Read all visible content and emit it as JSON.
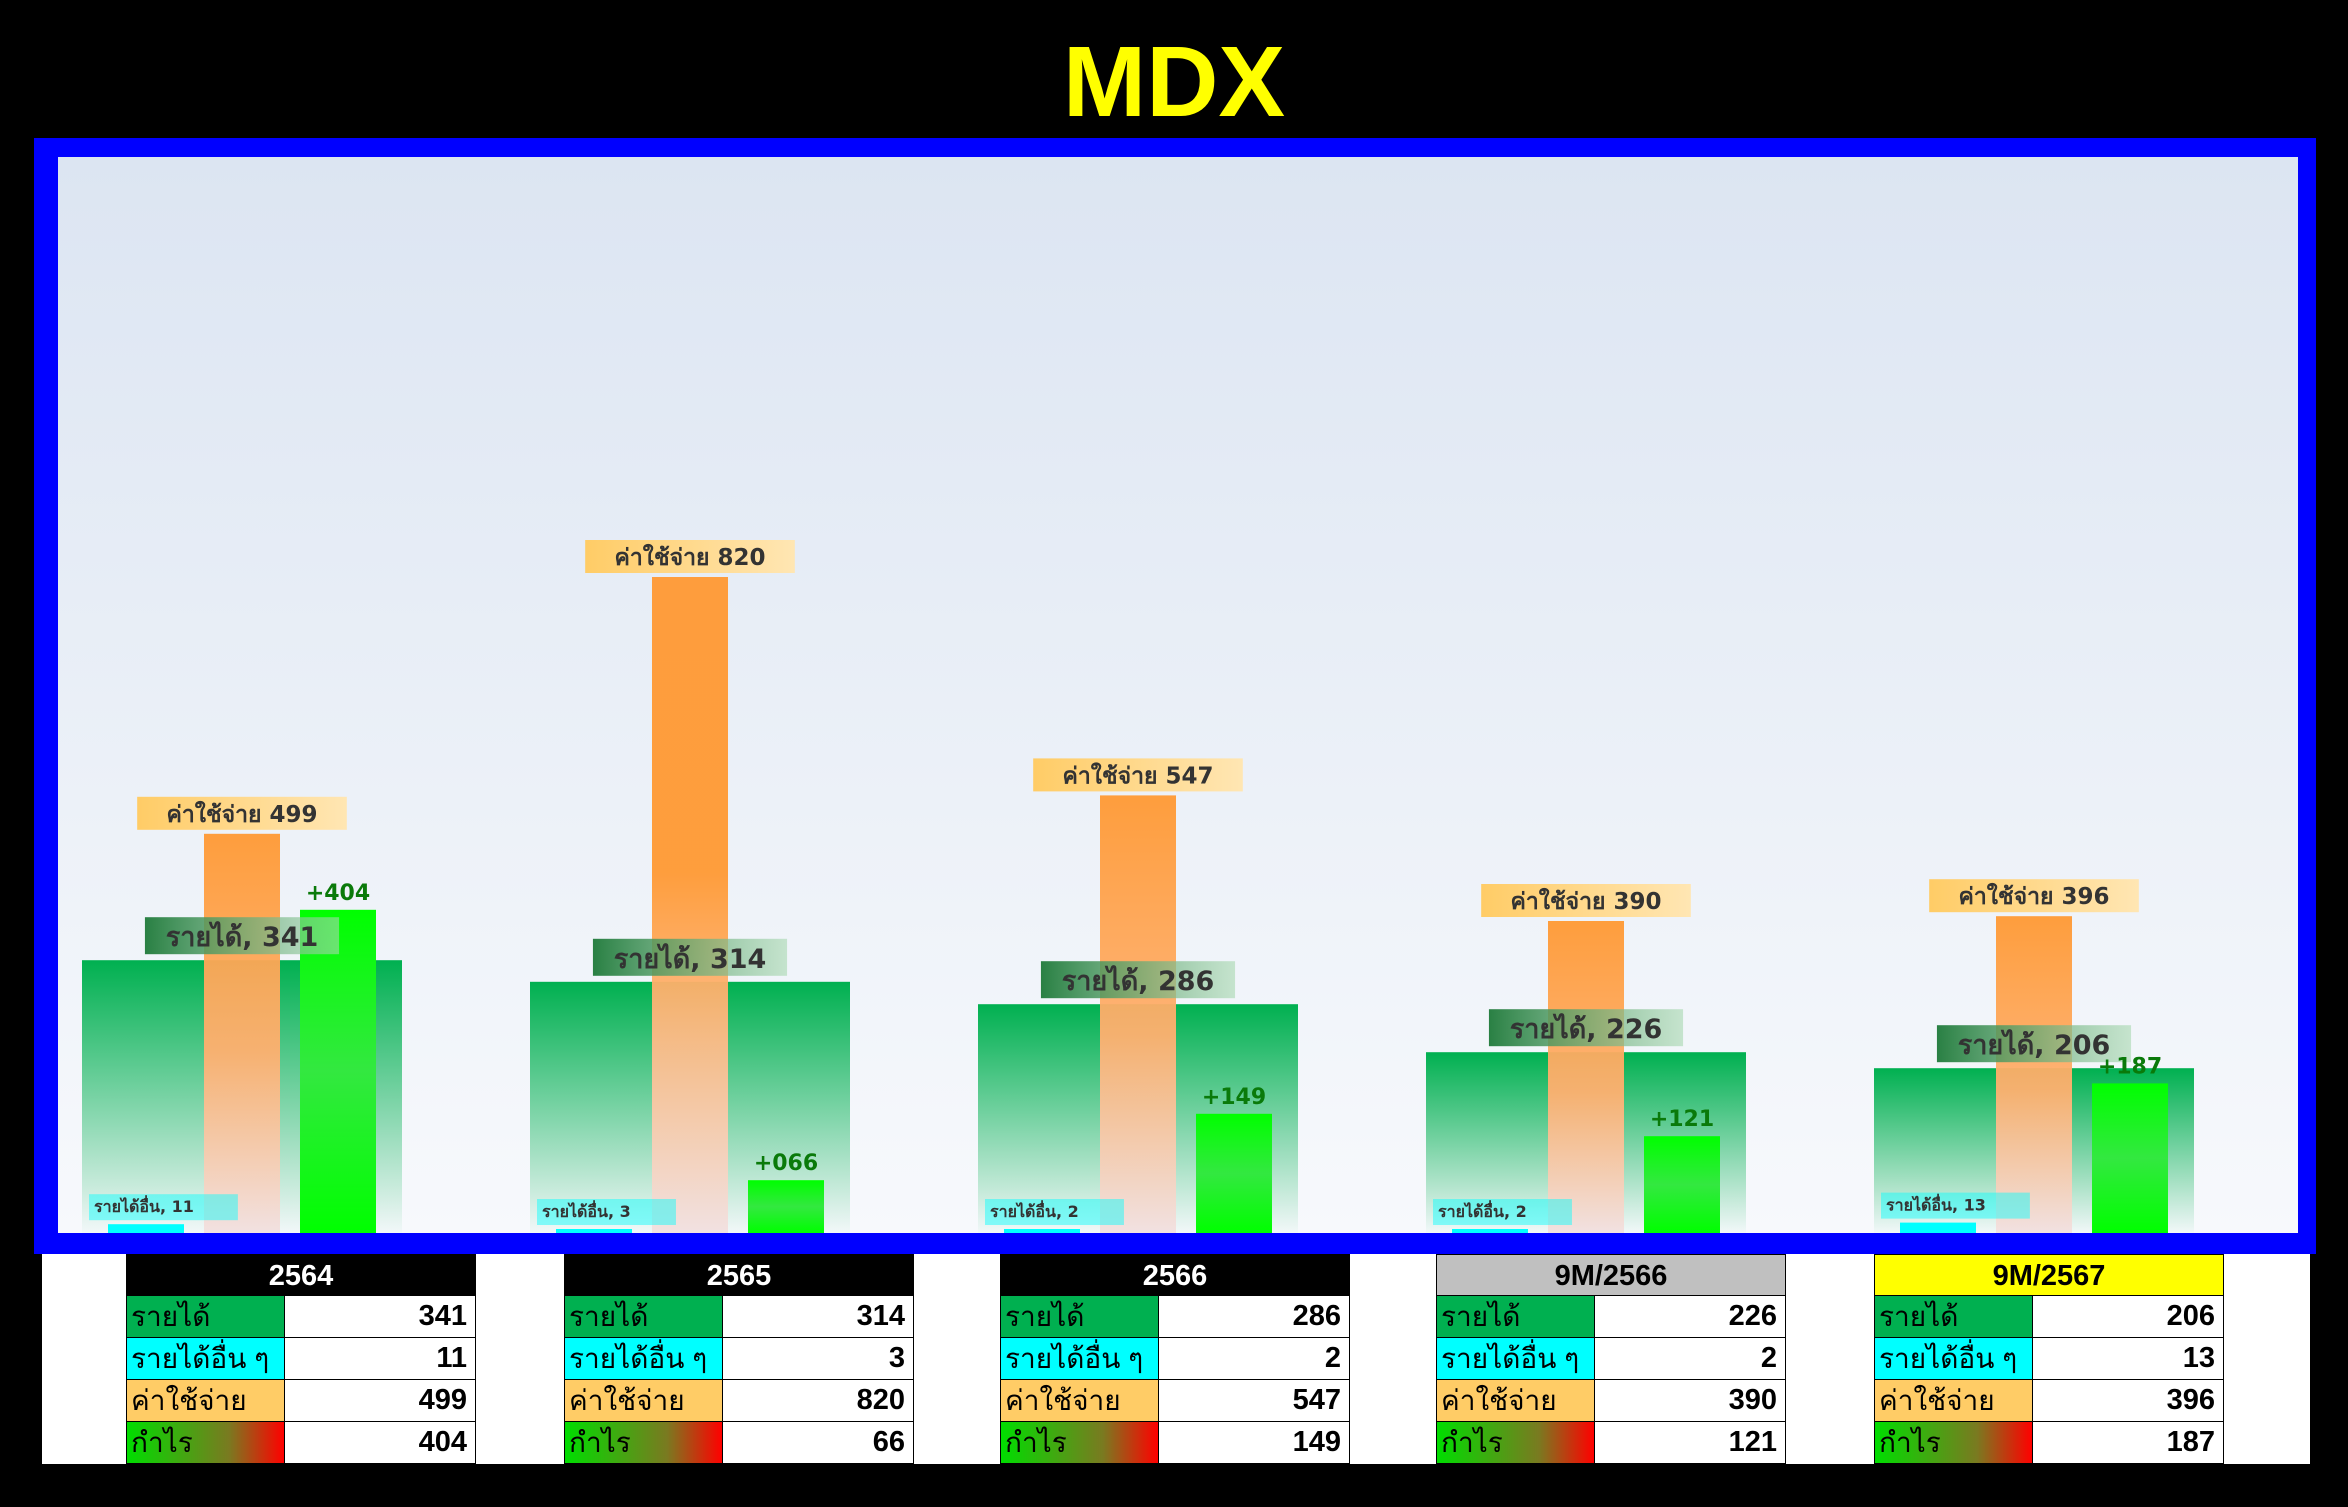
{
  "title": "MDX",
  "colors": {
    "title": "#ffff00",
    "frame": "#0000ff",
    "revenue": "#00b050",
    "other_income": "#00ffff",
    "expense": "#ffcc66",
    "expense_bar": "#ff9933",
    "profit": "#00ff00",
    "profit_label": "#0a7a0a",
    "year_header_dark": "#000000",
    "year_header_gray": "#c0c0c0",
    "year_header_yellow": "#ffff00"
  },
  "chart_data": {
    "type": "bar",
    "categories": [
      "2564",
      "2565",
      "2566",
      "9M/2566",
      "9M/2567"
    ],
    "series": [
      {
        "name": "รายได้",
        "values": [
          341,
          314,
          286,
          226,
          206
        ]
      },
      {
        "name": "รายได้อื่น",
        "values": [
          11,
          3,
          2,
          2,
          13
        ]
      },
      {
        "name": "ค่าใช้จ่าย",
        "values": [
          499,
          820,
          547,
          390,
          396
        ]
      },
      {
        "name": "กำไร",
        "values": [
          404,
          66,
          149,
          121,
          187
        ]
      }
    ],
    "data_labels": {
      "revenue": [
        "รายได้, 341",
        "รายได้, 314",
        "รายได้, 286",
        "รายได้, 226",
        "รายได้, 206"
      ],
      "other_income": [
        "รายได้อื่น, 11",
        "รายได้อื่น, 3",
        "รายได้อื่น, 2",
        "รายได้อื่น, 2",
        "รายได้อื่น, 13"
      ],
      "expense": [
        "ค่าใช้จ่าย 499",
        "ค่าใช้จ่าย 820",
        "ค่าใช้จ่าย 547",
        "ค่าใช้จ่าย 390",
        "ค่าใช้จ่าย 396"
      ],
      "profit": [
        "+404",
        "+066",
        "+149",
        "+121",
        "+187"
      ]
    },
    "ylim": [
      0,
      940
    ],
    "grid": false,
    "legend": "none"
  },
  "tables": [
    {
      "year": "2564",
      "header_style": "dark",
      "rows": [
        {
          "label": "รายได้",
          "value": "341",
          "kind": "revenue"
        },
        {
          "label": "รายได้อื่น ๆ",
          "value": "11",
          "kind": "other"
        },
        {
          "label": "ค่าใช้จ่าย",
          "value": "499",
          "kind": "expense"
        },
        {
          "label": "กำไร",
          "value": "404",
          "kind": "profit"
        }
      ]
    },
    {
      "year": "2565",
      "header_style": "dark",
      "rows": [
        {
          "label": "รายได้",
          "value": "314",
          "kind": "revenue"
        },
        {
          "label": "รายได้อื่น ๆ",
          "value": "3",
          "kind": "other"
        },
        {
          "label": "ค่าใช้จ่าย",
          "value": "820",
          "kind": "expense"
        },
        {
          "label": "กำไร",
          "value": "66",
          "kind": "profit"
        }
      ]
    },
    {
      "year": "2566",
      "header_style": "dark",
      "rows": [
        {
          "label": "รายได้",
          "value": "286",
          "kind": "revenue"
        },
        {
          "label": "รายได้อื่น ๆ",
          "value": "2",
          "kind": "other"
        },
        {
          "label": "ค่าใช้จ่าย",
          "value": "547",
          "kind": "expense"
        },
        {
          "label": "กำไร",
          "value": "149",
          "kind": "profit"
        }
      ]
    },
    {
      "year": "9M/2566",
      "header_style": "gray",
      "rows": [
        {
          "label": "รายได้",
          "value": "226",
          "kind": "revenue"
        },
        {
          "label": "รายได้อื่น ๆ",
          "value": "2",
          "kind": "other"
        },
        {
          "label": "ค่าใช้จ่าย",
          "value": "390",
          "kind": "expense"
        },
        {
          "label": "กำไร",
          "value": "121",
          "kind": "profit"
        }
      ]
    },
    {
      "year": "9M/2567",
      "header_style": "yellow",
      "rows": [
        {
          "label": "รายได้",
          "value": "206",
          "kind": "revenue"
        },
        {
          "label": "รายได้อื่น ๆ",
          "value": "13",
          "kind": "other"
        },
        {
          "label": "ค่าใช้จ่าย",
          "value": "396",
          "kind": "expense"
        },
        {
          "label": "กำไร",
          "value": "187",
          "kind": "profit"
        }
      ]
    }
  ]
}
